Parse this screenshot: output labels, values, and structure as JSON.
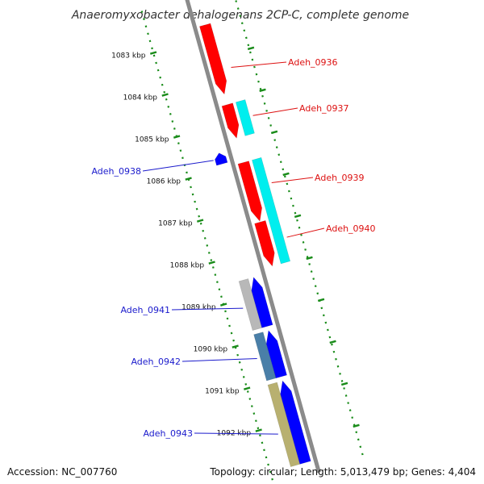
{
  "title": "Anaeromyxobacter dehalogenans 2CP-C, complete genome",
  "footer": {
    "accession": "Accession: NC_007760",
    "summary": "Topology: circular; Length: 5,013,479 bp; Genes: 4,404"
  },
  "colors": {
    "backbone": "#8a8a8a",
    "tick_marks": "#1a8c1a",
    "forward_cds": "#ff0000",
    "reverse_cds": "#0000ff",
    "forward_feature": "#00eeee",
    "reverse_feature_grey": "#b8b8b8",
    "reverse_feature_steel": "#4a7fa8",
    "reverse_feature_olive": "#b8b070",
    "label_forward": "#dd1111",
    "label_reverse": "#1a1acc"
  },
  "scale": {
    "unit": "kbp",
    "ticks": [
      "1083 kbp",
      "1084 kbp",
      "1085 kbp",
      "1086 kbp",
      "1087 kbp",
      "1088 kbp",
      "1089 kbp",
      "1090 kbp",
      "1091 kbp",
      "1092 kbp"
    ]
  },
  "genes": [
    {
      "name": "Adeh_0936",
      "strand": "forward",
      "start_kbp": 1082.7,
      "end_kbp": 1084.35
    },
    {
      "name": "Adeh_0937",
      "strand": "forward",
      "start_kbp": 1084.6,
      "end_kbp": 1085.4
    },
    {
      "name": "Adeh_0938",
      "strand": "reverse",
      "start_kbp": 1085.62,
      "end_kbp": 1085.88
    },
    {
      "name": "Adeh_0939",
      "strand": "forward",
      "start_kbp": 1085.98,
      "end_kbp": 1087.38
    },
    {
      "name": "Adeh_0940",
      "strand": "forward",
      "start_kbp": 1087.4,
      "end_kbp": 1088.45
    },
    {
      "name": "Adeh_0941",
      "strand": "reverse",
      "start_kbp": 1088.58,
      "end_kbp": 1089.75
    },
    {
      "name": "Adeh_0942",
      "strand": "reverse",
      "start_kbp": 1089.85,
      "end_kbp": 1090.95
    },
    {
      "name": "Adeh_0943",
      "strand": "reverse",
      "start_kbp": 1091.05,
      "end_kbp": 1093.0
    }
  ],
  "features": [
    {
      "strand": "forward",
      "color_key": "forward_feature",
      "start_kbp": 1084.6,
      "end_kbp": 1085.4
    },
    {
      "strand": "forward",
      "color_key": "forward_feature",
      "start_kbp": 1085.98,
      "end_kbp": 1088.45
    },
    {
      "strand": "reverse",
      "color_key": "reverse_feature_grey",
      "start_kbp": 1088.58,
      "end_kbp": 1089.75
    },
    {
      "strand": "reverse",
      "color_key": "reverse_feature_steel",
      "start_kbp": 1089.85,
      "end_kbp": 1090.95
    },
    {
      "strand": "reverse",
      "color_key": "reverse_feature_olive",
      "start_kbp": 1091.05,
      "end_kbp": 1093.0
    }
  ]
}
